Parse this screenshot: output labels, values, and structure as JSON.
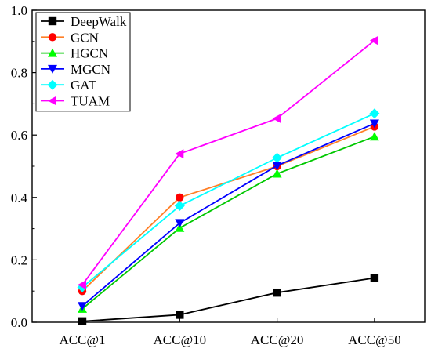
{
  "chart_data": {
    "type": "line",
    "categories": [
      "ACC@1",
      "ACC@10",
      "ACC@20",
      "ACC@50"
    ],
    "ylim": [
      0.0,
      1.0
    ],
    "yticks": [
      0.0,
      0.2,
      0.4,
      0.6,
      0.8,
      1.0
    ],
    "ytick_labels": [
      "0.0",
      "0.2",
      "0.4",
      "0.6",
      "0.8",
      "1.0"
    ],
    "grid": false,
    "legend_position": "top-left",
    "series": [
      {
        "name": "DeepWalk",
        "color": "#000000",
        "marker": "square",
        "values": [
          0.003,
          0.024,
          0.095,
          0.142
        ]
      },
      {
        "name": "GCN",
        "color": "#ff7f27",
        "marker_color": "#ff0000",
        "marker": "circle",
        "values": [
          0.1,
          0.4,
          0.5,
          0.627
        ]
      },
      {
        "name": "HGCN",
        "color": "#00c800",
        "marker_color": "#00ff00",
        "marker": "triangle-up",
        "values": [
          0.043,
          0.302,
          0.476,
          0.595
        ]
      },
      {
        "name": "MGCN",
        "color": "#0000ff",
        "marker_color": "#0000ff",
        "marker": "triangle-down",
        "values": [
          0.052,
          0.318,
          0.502,
          0.637
        ]
      },
      {
        "name": "GAT",
        "color": "#00ffff",
        "marker_color": "#00ffff",
        "marker": "diamond",
        "values": [
          0.112,
          0.373,
          0.527,
          0.669
        ]
      },
      {
        "name": "TUAM",
        "color": "#ff00ff",
        "marker_color": "#ff00ff",
        "marker": "triangle-left",
        "values": [
          0.12,
          0.54,
          0.653,
          0.903
        ]
      }
    ]
  }
}
